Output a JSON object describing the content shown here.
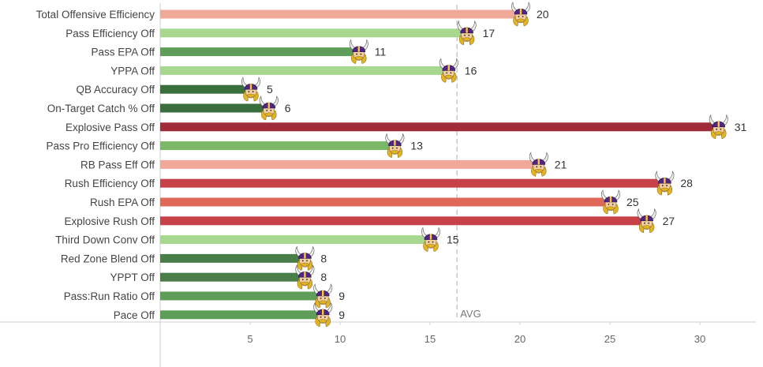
{
  "chart_data": {
    "type": "bar",
    "orientation": "horizontal",
    "categories": [
      "Total Offensive Efficiency",
      "Pass Efficiency Off",
      "Pass EPA Off",
      "YPPA Off",
      "QB Accuracy Off",
      "On-Target Catch % Off",
      "Explosive Pass Off",
      "Pass Pro Efficiency Off",
      "RB Pass Eff Off",
      "Rush Efficiency Off",
      "Rush EPA Off",
      "Explosive Rush Off",
      "Third Down Conv Off",
      "Red Zone Blend Off",
      "YPPT Off",
      "Pass:Run Ratio Off",
      "Pace Off"
    ],
    "values": [
      20,
      17,
      11,
      16,
      5,
      6,
      31,
      13,
      21,
      28,
      25,
      27,
      15,
      8,
      8,
      9,
      9
    ],
    "colors": [
      "#f0a898",
      "#a8d890",
      "#5e9e58",
      "#a8d890",
      "#3a6e3c",
      "#3a6e3c",
      "#a02c3a",
      "#7ab868",
      "#f0a898",
      "#c84048",
      "#e06858",
      "#c84048",
      "#a8d890",
      "#4a7e48",
      "#4a7e48",
      "#5e9e58",
      "#5e9e58"
    ],
    "bar_end_marker": "viking-helmet-icon",
    "reference_line": {
      "value": 16.5,
      "label": "AVG",
      "style": "dashed"
    },
    "x_ticks": [
      5,
      10,
      15,
      20,
      25,
      30
    ],
    "xlim": [
      0,
      33
    ],
    "grid": false,
    "legend": "none",
    "title": "",
    "xlabel": "",
    "ylabel": ""
  }
}
